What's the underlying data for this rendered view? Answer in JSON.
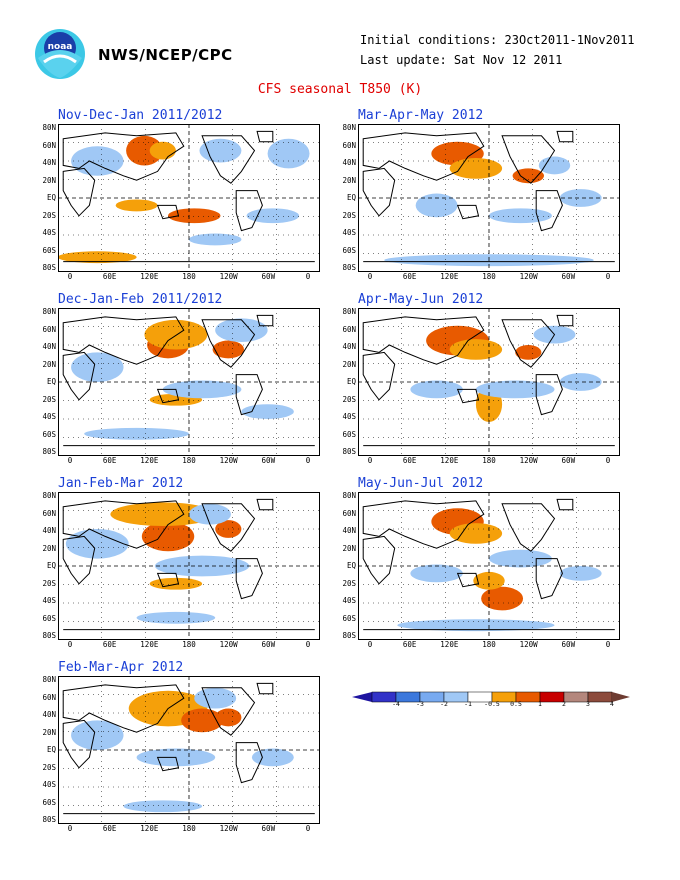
{
  "header": {
    "agency": "NWS/NCEP/CPC",
    "initial_conditions": "Initial conditions: 23Oct2011-1Nov2011",
    "last_update": "Last update: Sat Nov 12 2011",
    "title": "CFS seasonal T850 (K)"
  },
  "logo": {
    "text": "noaa"
  },
  "lat_labels": [
    "80N",
    "60N",
    "40N",
    "20N",
    "EQ",
    "20S",
    "40S",
    "60S",
    "80S"
  ],
  "lon_labels": [
    "0",
    "60E",
    "120E",
    "180",
    "120W",
    "60W",
    "0"
  ],
  "panels": [
    {
      "title": "Nov-Dec-Jan 2011/2012"
    },
    {
      "title": "Mar-Apr-May 2012"
    },
    {
      "title": "Dec-Jan-Feb 2011/2012"
    },
    {
      "title": "Apr-May-Jun 2012"
    },
    {
      "title": "Jan-Feb-Mar 2012"
    },
    {
      "title": "May-Jun-Jul 2012"
    },
    {
      "title": "Feb-Mar-Apr 2012"
    }
  ],
  "colorbar": {
    "labels": [
      "-4",
      "-3",
      "-2",
      "-1",
      "-0.5",
      "0.5",
      "1",
      "2",
      "3",
      "4"
    ],
    "colors": [
      "#3232c8",
      "#3c78dc",
      "#78aaf0",
      "#a0c8f5",
      "#ffffff",
      "#f5a00a",
      "#e85a00",
      "#c80000",
      "#b4877d",
      "#8c4b3c"
    ],
    "end_low": "#1e14a0",
    "end_high": "#6e3c32"
  }
}
